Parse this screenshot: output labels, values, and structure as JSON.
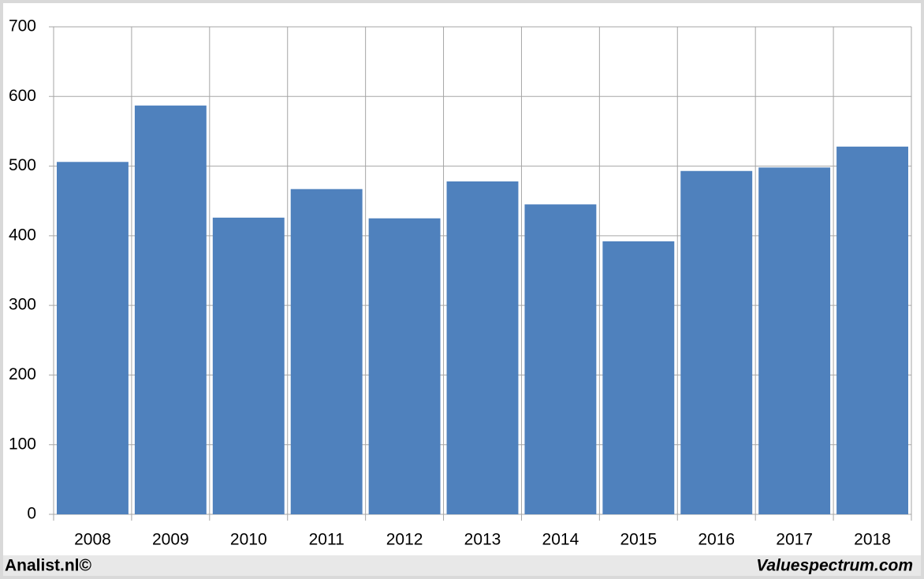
{
  "chart_data": {
    "type": "bar",
    "categories": [
      "2008",
      "2009",
      "2010",
      "2011",
      "2012",
      "2013",
      "2014",
      "2015",
      "2016",
      "2017",
      "2018"
    ],
    "values": [
      506,
      587,
      426,
      467,
      425,
      478,
      445,
      392,
      493,
      498,
      528
    ],
    "color": "#4f81bd",
    "ylim": [
      0,
      700
    ],
    "yticks": [
      0,
      100,
      200,
      300,
      400,
      500,
      600,
      700
    ],
    "grid": true,
    "footer_left": "Analist.nl©",
    "footer_right": "Valuespectrum.com"
  }
}
